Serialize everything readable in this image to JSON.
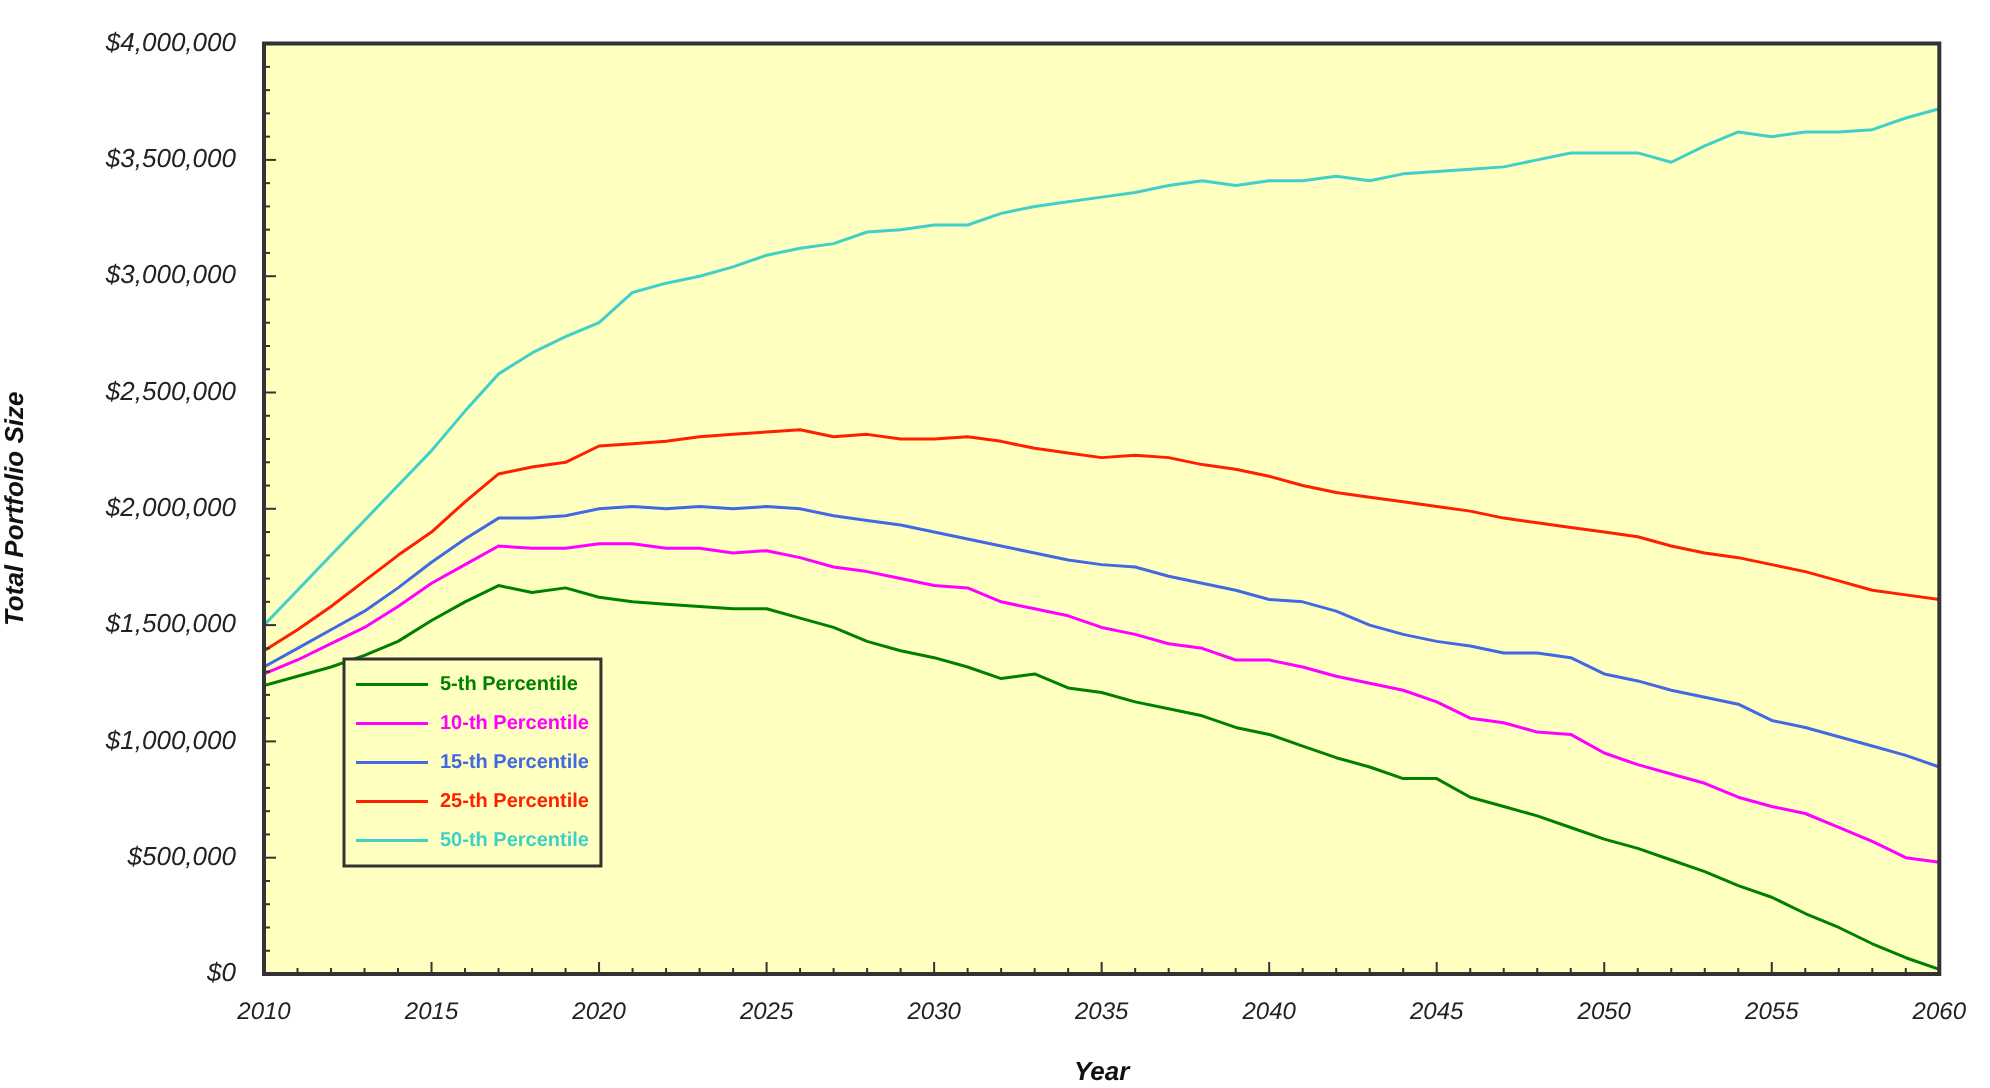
{
  "chart_data": {
    "type": "line",
    "xlabel": "Year",
    "ylabel": "Total Portfolio Size",
    "x": [
      2010,
      2011,
      2012,
      2013,
      2014,
      2015,
      2016,
      2017,
      2018,
      2019,
      2020,
      2021,
      2022,
      2023,
      2024,
      2025,
      2026,
      2027,
      2028,
      2029,
      2030,
      2031,
      2032,
      2033,
      2034,
      2035,
      2036,
      2037,
      2038,
      2039,
      2040,
      2041,
      2042,
      2043,
      2044,
      2045,
      2046,
      2047,
      2048,
      2049,
      2050,
      2051,
      2052,
      2053,
      2054,
      2055,
      2056,
      2057,
      2058,
      2059,
      2060
    ],
    "series": [
      {
        "name": "5-th Percentile",
        "color": "#008000",
        "values": [
          1240000,
          1280000,
          1320000,
          1370000,
          1430000,
          1520000,
          1600000,
          1670000,
          1640000,
          1660000,
          1620000,
          1600000,
          1590000,
          1580000,
          1570000,
          1570000,
          1530000,
          1490000,
          1430000,
          1390000,
          1360000,
          1320000,
          1270000,
          1290000,
          1230000,
          1210000,
          1170000,
          1140000,
          1110000,
          1060000,
          1030000,
          980000,
          930000,
          890000,
          840000,
          840000,
          760000,
          720000,
          680000,
          630000,
          580000,
          540000,
          490000,
          440000,
          380000,
          330000,
          260000,
          200000,
          130000,
          70000,
          20000
        ]
      },
      {
        "name": "10-th Percentile",
        "color": "#ff00ff",
        "values": [
          1290000,
          1350000,
          1420000,
          1490000,
          1580000,
          1680000,
          1760000,
          1840000,
          1830000,
          1830000,
          1850000,
          1850000,
          1830000,
          1830000,
          1810000,
          1820000,
          1790000,
          1750000,
          1730000,
          1700000,
          1670000,
          1660000,
          1600000,
          1570000,
          1540000,
          1490000,
          1460000,
          1420000,
          1400000,
          1350000,
          1350000,
          1320000,
          1280000,
          1250000,
          1220000,
          1170000,
          1100000,
          1080000,
          1040000,
          1030000,
          950000,
          900000,
          860000,
          820000,
          760000,
          720000,
          690000,
          630000,
          570000,
          500000,
          480000
        ]
      },
      {
        "name": "15-th Percentile",
        "color": "#4169e1",
        "values": [
          1320000,
          1400000,
          1480000,
          1560000,
          1660000,
          1770000,
          1870000,
          1960000,
          1960000,
          1970000,
          2000000,
          2010000,
          2000000,
          2010000,
          2000000,
          2010000,
          2000000,
          1970000,
          1950000,
          1930000,
          1900000,
          1870000,
          1840000,
          1810000,
          1780000,
          1760000,
          1750000,
          1710000,
          1680000,
          1650000,
          1610000,
          1600000,
          1560000,
          1500000,
          1460000,
          1430000,
          1410000,
          1380000,
          1380000,
          1360000,
          1290000,
          1260000,
          1220000,
          1190000,
          1160000,
          1090000,
          1060000,
          1020000,
          980000,
          940000,
          890000
        ]
      },
      {
        "name": "25-th Percentile",
        "color": "#ff2000",
        "values": [
          1390000,
          1480000,
          1580000,
          1690000,
          1800000,
          1900000,
          2030000,
          2150000,
          2180000,
          2200000,
          2270000,
          2280000,
          2290000,
          2310000,
          2320000,
          2330000,
          2340000,
          2310000,
          2320000,
          2300000,
          2300000,
          2310000,
          2290000,
          2260000,
          2240000,
          2220000,
          2230000,
          2220000,
          2190000,
          2170000,
          2140000,
          2100000,
          2070000,
          2050000,
          2030000,
          2010000,
          1990000,
          1960000,
          1940000,
          1920000,
          1900000,
          1880000,
          1840000,
          1810000,
          1790000,
          1760000,
          1730000,
          1690000,
          1650000,
          1630000,
          1610000
        ]
      },
      {
        "name": "50-th Percentile",
        "color": "#40d0c8",
        "values": [
          1500000,
          1650000,
          1800000,
          1950000,
          2100000,
          2250000,
          2420000,
          2580000,
          2670000,
          2740000,
          2800000,
          2930000,
          2970000,
          3000000,
          3040000,
          3090000,
          3120000,
          3140000,
          3190000,
          3200000,
          3220000,
          3220000,
          3270000,
          3300000,
          3320000,
          3340000,
          3360000,
          3390000,
          3410000,
          3390000,
          3410000,
          3410000,
          3430000,
          3410000,
          3440000,
          3450000,
          3460000,
          3470000,
          3500000,
          3530000,
          3530000,
          3530000,
          3490000,
          3560000,
          3620000,
          3600000,
          3620000,
          3620000,
          3630000,
          3680000,
          3720000
        ]
      }
    ],
    "xlim": [
      2010,
      2060
    ],
    "xticks": [
      2010,
      2015,
      2020,
      2025,
      2030,
      2035,
      2040,
      2045,
      2050,
      2055,
      2060
    ],
    "ylim": [
      0,
      4000000
    ],
    "yticks": [
      {
        "value": 0,
        "label": "$0"
      },
      {
        "value": 500000,
        "label": "$500,000"
      },
      {
        "value": 1000000,
        "label": "$1,000,000"
      },
      {
        "value": 1500000,
        "label": "$1,500,000"
      },
      {
        "value": 2000000,
        "label": "$2,000,000"
      },
      {
        "value": 2500000,
        "label": "$2,500,000"
      },
      {
        "value": 3000000,
        "label": "$3,000,000"
      },
      {
        "value": 3500000,
        "label": "$3,500,000"
      },
      {
        "value": 4000000,
        "label": "$4,000,000"
      }
    ],
    "grid": false,
    "legend": "bottom left",
    "marker": "none",
    "line_style": "solid"
  }
}
